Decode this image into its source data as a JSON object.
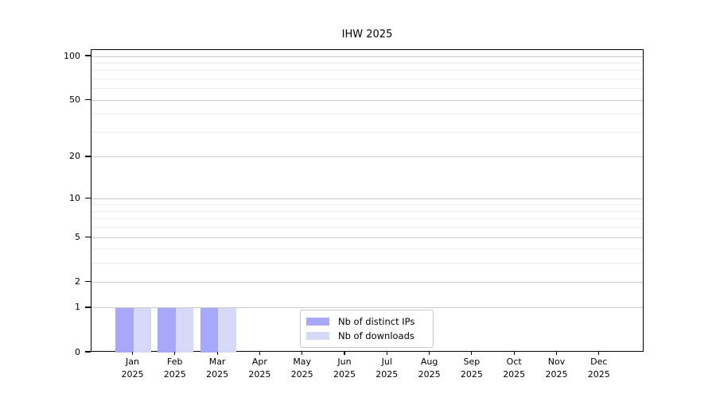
{
  "figure": {
    "title": "IHW 2025"
  },
  "chart_data": {
    "type": "bar",
    "title": "IHW 2025",
    "categories": [
      "Jan",
      "Feb",
      "Mar",
      "Apr",
      "May",
      "Jun",
      "Jul",
      "Aug",
      "Sep",
      "Oct",
      "Nov",
      "Dec"
    ],
    "category_year": "2025",
    "series": [
      {
        "name": "Nb of distinct IPs",
        "slug": "distinct-ips",
        "color": "#a8a8f8",
        "values": [
          1,
          1,
          1,
          0,
          0,
          0,
          0,
          0,
          0,
          0,
          0,
          0
        ]
      },
      {
        "name": "Nb of downloads",
        "slug": "downloads",
        "color": "#d8d8f8",
        "values": [
          1,
          1,
          1,
          0,
          0,
          0,
          0,
          0,
          0,
          0,
          0,
          0
        ]
      }
    ],
    "yscale": "log1p",
    "ylim": [
      0,
      110
    ],
    "yticks": [
      0,
      1,
      2,
      5,
      10,
      20,
      50,
      100
    ],
    "y_minor_gridlines": [
      3,
      4,
      6,
      7,
      8,
      9,
      30,
      40,
      60,
      70,
      80,
      90
    ],
    "grid": true,
    "legend": {
      "position": "lower center"
    },
    "colors": {
      "axis": "#000000",
      "grid_major": "#cccccc",
      "grid_minor": "#ededed",
      "legend_border": "#c9c9c9",
      "background": "#ffffff"
    }
  }
}
